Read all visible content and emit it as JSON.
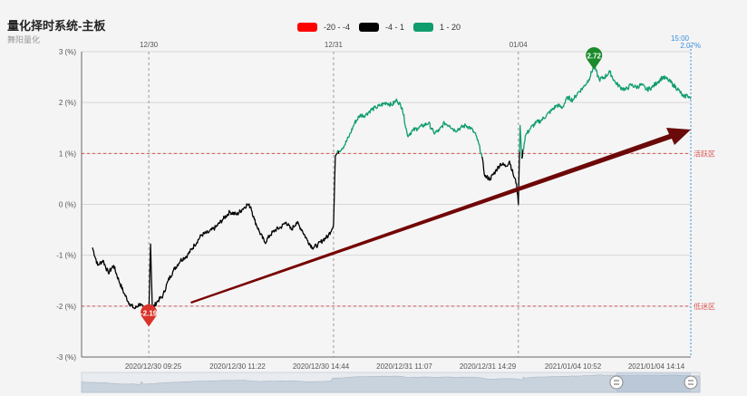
{
  "title": "量化择时系统-主板",
  "subtitle": "舞阳量化",
  "legend": [
    {
      "label": "-20 - -4",
      "color": "#ff0000"
    },
    {
      "label": "-4 - 1",
      "color": "#000000"
    },
    {
      "label": "1 - 20",
      "color": "#0f9d6e"
    }
  ],
  "chart_data": {
    "type": "line",
    "y_ticks": [
      "3 (%)",
      "2 (%)",
      "1 (%)",
      "0 (%)",
      "-1 (%)",
      "-2 (%)",
      "-3 (%)"
    ],
    "ylim": [
      -3,
      3
    ],
    "top_date_labels": [
      "12/30",
      "12/31",
      "01/04"
    ],
    "x_time_labels": [
      "2020/12/30 09:25",
      "2020/12/30 11:22",
      "2020/12/30 14:44",
      "2020/12/31 11:07",
      "2020/12/31 14:29",
      "2021/01/04 10:52",
      "2021/01/04 14:14"
    ],
    "end_time": "15:00",
    "end_value": "2.07%",
    "reference_lines": [
      {
        "value": 1,
        "label": "活跃区"
      },
      {
        "value": -2,
        "label": "低迷区"
      }
    ],
    "min_marker": {
      "label": "-2.19",
      "value": -2.19
    },
    "max_marker": {
      "label": "2.72",
      "value": 2.72
    },
    "series": [
      {
        "color": "#0f9d6e",
        "band": "1 - 20"
      },
      {
        "color": "#000000",
        "band": "-4 - 1"
      }
    ],
    "keypoints": [
      [
        0,
        -0.85
      ],
      [
        6,
        -1.2
      ],
      [
        12,
        -1.1
      ],
      [
        18,
        -1.35
      ],
      [
        24,
        -1.2
      ],
      [
        30,
        -1.5
      ],
      [
        36,
        -1.75
      ],
      [
        42,
        -1.95
      ],
      [
        48,
        -2.05
      ],
      [
        54,
        -1.95
      ],
      [
        60,
        -2.1
      ],
      [
        64,
        -2.19
      ],
      [
        66,
        -0.78
      ],
      [
        68,
        -2.05
      ],
      [
        74,
        -1.9
      ],
      [
        80,
        -1.8
      ],
      [
        86,
        -1.5
      ],
      [
        92,
        -1.3
      ],
      [
        100,
        -1.1
      ],
      [
        108,
        -1.0
      ],
      [
        116,
        -0.8
      ],
      [
        124,
        -0.6
      ],
      [
        132,
        -0.55
      ],
      [
        140,
        -0.45
      ],
      [
        148,
        -0.3
      ],
      [
        156,
        -0.15
      ],
      [
        164,
        -0.2
      ],
      [
        170,
        -0.1
      ],
      [
        176,
        0.0
      ],
      [
        180,
        -0.05
      ],
      [
        184,
        -0.3
      ],
      [
        190,
        -0.55
      ],
      [
        196,
        -0.75
      ],
      [
        202,
        -0.6
      ],
      [
        208,
        -0.5
      ],
      [
        214,
        -0.45
      ],
      [
        220,
        -0.35
      ],
      [
        226,
        -0.5
      ],
      [
        232,
        -0.35
      ],
      [
        238,
        -0.5
      ],
      [
        244,
        -0.7
      ],
      [
        250,
        -0.85
      ],
      [
        256,
        -0.8
      ],
      [
        262,
        -0.7
      ],
      [
        268,
        -0.62
      ],
      [
        274,
        -0.4
      ],
      [
        276,
        0.95
      ],
      [
        280,
        1.05
      ],
      [
        286,
        1.15
      ],
      [
        292,
        1.35
      ],
      [
        298,
        1.6
      ],
      [
        304,
        1.75
      ],
      [
        310,
        1.75
      ],
      [
        316,
        1.85
      ],
      [
        322,
        1.9
      ],
      [
        328,
        1.95
      ],
      [
        334,
        2.0
      ],
      [
        340,
        1.95
      ],
      [
        346,
        2.05
      ],
      [
        352,
        1.9
      ],
      [
        358,
        1.35
      ],
      [
        364,
        1.45
      ],
      [
        370,
        1.5
      ],
      [
        376,
        1.55
      ],
      [
        382,
        1.6
      ],
      [
        388,
        1.4
      ],
      [
        394,
        1.45
      ],
      [
        400,
        1.6
      ],
      [
        406,
        1.55
      ],
      [
        412,
        1.45
      ],
      [
        418,
        1.5
      ],
      [
        424,
        1.55
      ],
      [
        430,
        1.5
      ],
      [
        436,
        1.35
      ],
      [
        442,
        1.0
      ],
      [
        446,
        0.55
      ],
      [
        452,
        0.5
      ],
      [
        458,
        0.65
      ],
      [
        464,
        0.8
      ],
      [
        470,
        0.75
      ],
      [
        474,
        0.85
      ],
      [
        478,
        0.6
      ],
      [
        482,
        0.4
      ],
      [
        484,
        0.0
      ],
      [
        486,
        1.55
      ],
      [
        488,
        0.9
      ],
      [
        492,
        1.35
      ],
      [
        498,
        1.5
      ],
      [
        504,
        1.6
      ],
      [
        510,
        1.65
      ],
      [
        516,
        1.75
      ],
      [
        522,
        1.85
      ],
      [
        528,
        1.95
      ],
      [
        534,
        1.9
      ],
      [
        540,
        2.1
      ],
      [
        546,
        2.05
      ],
      [
        552,
        2.2
      ],
      [
        558,
        2.3
      ],
      [
        564,
        2.45
      ],
      [
        570,
        2.72
      ],
      [
        576,
        2.45
      ],
      [
        582,
        2.5
      ],
      [
        588,
        2.6
      ],
      [
        594,
        2.4
      ],
      [
        600,
        2.3
      ],
      [
        606,
        2.25
      ],
      [
        612,
        2.35
      ],
      [
        618,
        2.3
      ],
      [
        624,
        2.35
      ],
      [
        630,
        2.25
      ],
      [
        636,
        2.3
      ],
      [
        642,
        2.4
      ],
      [
        648,
        2.5
      ],
      [
        654,
        2.45
      ],
      [
        660,
        2.35
      ],
      [
        666,
        2.25
      ],
      [
        672,
        2.1
      ],
      [
        676,
        2.15
      ],
      [
        680,
        2.07
      ]
    ]
  }
}
